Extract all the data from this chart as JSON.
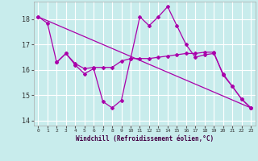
{
  "xlabel": "Windchill (Refroidissement éolien,°C)",
  "bg_color": "#c8ecec",
  "line_color": "#aa00aa",
  "grid_color": "#ffffff",
  "xmin": -0.5,
  "xmax": 23.5,
  "ymin": 13.8,
  "ymax": 18.7,
  "yticks": [
    14,
    15,
    16,
    17,
    18
  ],
  "xticks": [
    0,
    1,
    2,
    3,
    4,
    5,
    6,
    7,
    8,
    9,
    10,
    11,
    12,
    13,
    14,
    15,
    16,
    17,
    18,
    19,
    20,
    21,
    22,
    23
  ],
  "line1_x": [
    0,
    1,
    2,
    3,
    4,
    5,
    6,
    7,
    8,
    9,
    10,
    11,
    12,
    13,
    14,
    15,
    16,
    17,
    18,
    19,
    20,
    21,
    22,
    23
  ],
  "line1_y": [
    18.1,
    17.85,
    16.3,
    16.65,
    16.25,
    16.05,
    16.1,
    16.1,
    16.1,
    16.35,
    16.45,
    16.45,
    16.45,
    16.5,
    16.55,
    16.6,
    16.65,
    16.65,
    16.7,
    16.7,
    15.8,
    15.35,
    14.85,
    14.5
  ],
  "line2_x": [
    2,
    3,
    4,
    5,
    6,
    7,
    8,
    9,
    10,
    11,
    12,
    13,
    14,
    15,
    16,
    17,
    18,
    19,
    20,
    21,
    22,
    23
  ],
  "line2_y": [
    16.3,
    16.65,
    16.2,
    15.85,
    16.05,
    14.75,
    14.5,
    14.8,
    16.45,
    18.1,
    17.75,
    18.1,
    18.5,
    17.75,
    17.0,
    16.5,
    16.6,
    16.65,
    15.85,
    15.35,
    14.85,
    14.5
  ],
  "line3_x": [
    0,
    23
  ],
  "line3_y": [
    18.1,
    14.5
  ]
}
